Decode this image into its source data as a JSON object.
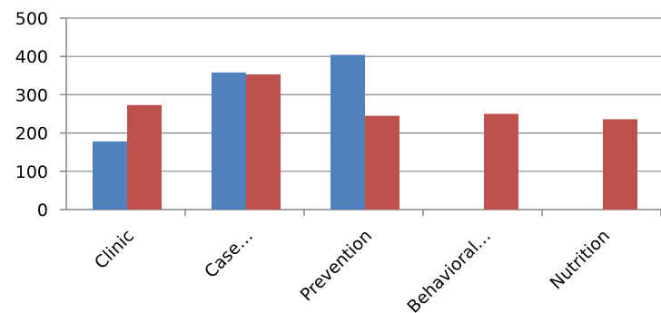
{
  "chart_data": {
    "type": "bar",
    "categories": [
      "Clinic",
      "Case…",
      "Prevention",
      "Behavioral…",
      "Nutrition"
    ],
    "series": [
      {
        "color": "#4F81BD",
        "values": [
          178,
          358,
          404,
          null,
          null
        ]
      },
      {
        "color": "#C0504D",
        "values": [
          273,
          353,
          245,
          250,
          236
        ]
      }
    ],
    "ylim": [
      0,
      500
    ],
    "yticks": [
      0,
      100,
      200,
      300,
      400,
      500
    ],
    "grid": true,
    "legend": "none",
    "title": "",
    "xlabel": "",
    "ylabel": ""
  }
}
